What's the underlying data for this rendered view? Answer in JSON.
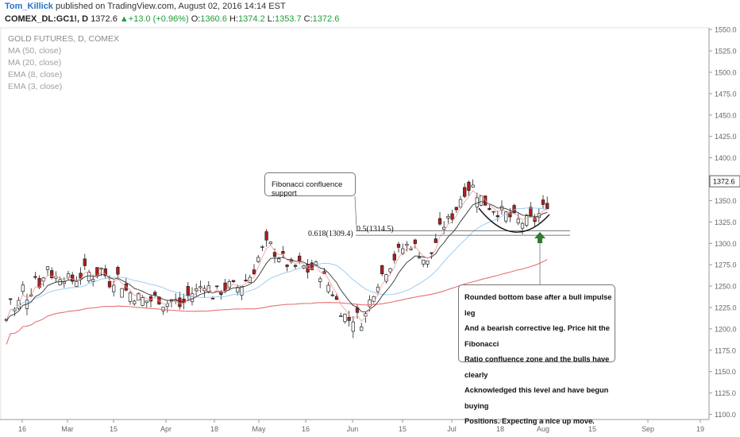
{
  "header": {
    "user": "Tom_Killick",
    "published_text": "published on TradingView.com, August 02, 2016 14:14 EST",
    "symbol": "COMEX_DL:GC1!, D",
    "last": "1372.6",
    "change": "+13.0 (+0.96%)",
    "o_label": "O:",
    "o": "1360.6",
    "h_label": "H:",
    "h": "1374.2",
    "l_label": "L:",
    "l": "1353.7",
    "c_label": "C:",
    "c": "1372.6"
  },
  "legend": {
    "title": "GOLD FUTURES, D, COMEX",
    "items": [
      "MA (50, close)",
      "MA (20, close)",
      "EMA (8, close)",
      "EMA (3, close)"
    ]
  },
  "annotations": {
    "fib_note": "Fibonacci confluence support",
    "fib_618": "0.618(1309.4)",
    "fib_05": "0.5(1314.5)",
    "main_note": [
      "Rounded bottom base after a bull impulse leg",
      "And a bearish corrective leg. Price hit the Fibonacci",
      "Ratio confluence zone and the bulls have clearly",
      "Acknowledged this level and have begun buying",
      "Positions. Expecting a nice up move."
    ]
  },
  "colors": {
    "up_candle": "#ffffff",
    "down_candle": "#b71c1c",
    "ma50": "#e57373",
    "ma20": "#90caf9",
    "ema8": "#333333",
    "ema3": "#ef9a9a",
    "last_price_tag": "#ffffff",
    "arrow": "#2e7d32"
  },
  "chart_data": {
    "type": "candlestick",
    "title": "GOLD FUTURES, D, COMEX",
    "last_price_label": "1372.6",
    "y_ticks": [
      "1550.0",
      "1525.0",
      "1500.0",
      "1475.0",
      "1450.0",
      "1425.0",
      "1400.0",
      "1375.0",
      "1350.0",
      "1325.0",
      "1300.0",
      "1275.0",
      "1250.0",
      "1225.0",
      "1200.0",
      "1175.0",
      "1150.0",
      "1125.0",
      "1100.0"
    ],
    "ylim": [
      1094,
      1552
    ],
    "x_ticks": [
      "16",
      "Mar",
      "15",
      "Apr",
      "18",
      "May",
      "16",
      "Jun",
      "15",
      "Jul",
      "18",
      "Aug",
      "15",
      "Sep",
      "19"
    ],
    "fib_levels": [
      1309.4,
      1314.5
    ],
    "price_path": [
      [
        0,
        1210
      ],
      [
        6,
        1240
      ],
      [
        12,
        1215
      ],
      [
        20,
        1250
      ],
      [
        28,
        1235
      ],
      [
        36,
        1262
      ],
      [
        44,
        1250
      ],
      [
        52,
        1275
      ],
      [
        60,
        1258
      ],
      [
        70,
        1265
      ],
      [
        80,
        1255
      ],
      [
        90,
        1260
      ],
      [
        100,
        1268
      ],
      [
        110,
        1262
      ],
      [
        120,
        1270
      ],
      [
        130,
        1255
      ],
      [
        140,
        1262
      ],
      [
        150,
        1245
      ],
      [
        160,
        1240
      ],
      [
        170,
        1235
      ],
      [
        180,
        1232
      ],
      [
        190,
        1238
      ],
      [
        200,
        1228
      ],
      [
        210,
        1235
      ],
      [
        220,
        1225
      ],
      [
        230,
        1240
      ],
      [
        240,
        1245
      ],
      [
        250,
        1255
      ],
      [
        260,
        1240
      ],
      [
        270,
        1245
      ],
      [
        280,
        1250
      ],
      [
        290,
        1248
      ],
      [
        300,
        1255
      ],
      [
        310,
        1265
      ],
      [
        320,
        1290
      ],
      [
        330,
        1300
      ],
      [
        340,
        1288
      ],
      [
        350,
        1280
      ],
      [
        360,
        1270
      ],
      [
        370,
        1275
      ],
      [
        380,
        1268
      ],
      [
        390,
        1272
      ],
      [
        400,
        1260
      ],
      [
        410,
        1245
      ],
      [
        420,
        1225
      ],
      [
        430,
        1210
      ],
      [
        440,
        1215
      ],
      [
        450,
        1208
      ],
      [
        460,
        1240
      ],
      [
        470,
        1260
      ],
      [
        480,
        1272
      ],
      [
        490,
        1285
      ],
      [
        500,
        1295
      ],
      [
        510,
        1300
      ],
      [
        520,
        1290
      ],
      [
        530,
        1275
      ],
      [
        540,
        1300
      ],
      [
        548,
        1320
      ],
      [
        556,
        1325
      ],
      [
        566,
        1340
      ],
      [
        576,
        1362
      ],
      [
        586,
        1368
      ],
      [
        596,
        1355
      ],
      [
        606,
        1345
      ],
      [
        616,
        1340
      ],
      [
        626,
        1335
      ],
      [
        636,
        1330
      ],
      [
        646,
        1325
      ],
      [
        656,
        1325
      ],
      [
        666,
        1328
      ],
      [
        676,
        1340
      ],
      [
        684,
        1352
      ],
      [
        690,
        1372.6
      ]
    ],
    "series": [
      {
        "name": "MA (50, close)"
      },
      {
        "name": "MA (20, close)"
      },
      {
        "name": "EMA (8, close)"
      },
      {
        "name": "EMA (3, close)"
      }
    ]
  }
}
